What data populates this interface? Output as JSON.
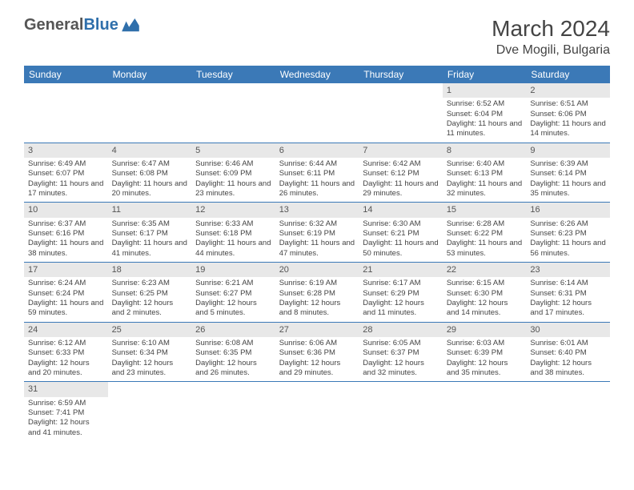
{
  "logo": {
    "general": "General",
    "blue": "Blue"
  },
  "title": "March 2024",
  "location": "Dve Mogili, Bulgaria",
  "colors": {
    "header_bg": "#3b79b7",
    "header_text": "#ffffff",
    "daynum_bg": "#e8e8e8",
    "row_divider": "#3b79b7",
    "body_text": "#444444"
  },
  "weekdays": [
    "Sunday",
    "Monday",
    "Tuesday",
    "Wednesday",
    "Thursday",
    "Friday",
    "Saturday"
  ],
  "weeks": [
    [
      null,
      null,
      null,
      null,
      null,
      {
        "n": "1",
        "sr": "Sunrise: 6:52 AM",
        "ss": "Sunset: 6:04 PM",
        "dl": "Daylight: 11 hours and 11 minutes."
      },
      {
        "n": "2",
        "sr": "Sunrise: 6:51 AM",
        "ss": "Sunset: 6:06 PM",
        "dl": "Daylight: 11 hours and 14 minutes."
      }
    ],
    [
      {
        "n": "3",
        "sr": "Sunrise: 6:49 AM",
        "ss": "Sunset: 6:07 PM",
        "dl": "Daylight: 11 hours and 17 minutes."
      },
      {
        "n": "4",
        "sr": "Sunrise: 6:47 AM",
        "ss": "Sunset: 6:08 PM",
        "dl": "Daylight: 11 hours and 20 minutes."
      },
      {
        "n": "5",
        "sr": "Sunrise: 6:46 AM",
        "ss": "Sunset: 6:09 PM",
        "dl": "Daylight: 11 hours and 23 minutes."
      },
      {
        "n": "6",
        "sr": "Sunrise: 6:44 AM",
        "ss": "Sunset: 6:11 PM",
        "dl": "Daylight: 11 hours and 26 minutes."
      },
      {
        "n": "7",
        "sr": "Sunrise: 6:42 AM",
        "ss": "Sunset: 6:12 PM",
        "dl": "Daylight: 11 hours and 29 minutes."
      },
      {
        "n": "8",
        "sr": "Sunrise: 6:40 AM",
        "ss": "Sunset: 6:13 PM",
        "dl": "Daylight: 11 hours and 32 minutes."
      },
      {
        "n": "9",
        "sr": "Sunrise: 6:39 AM",
        "ss": "Sunset: 6:14 PM",
        "dl": "Daylight: 11 hours and 35 minutes."
      }
    ],
    [
      {
        "n": "10",
        "sr": "Sunrise: 6:37 AM",
        "ss": "Sunset: 6:16 PM",
        "dl": "Daylight: 11 hours and 38 minutes."
      },
      {
        "n": "11",
        "sr": "Sunrise: 6:35 AM",
        "ss": "Sunset: 6:17 PM",
        "dl": "Daylight: 11 hours and 41 minutes."
      },
      {
        "n": "12",
        "sr": "Sunrise: 6:33 AM",
        "ss": "Sunset: 6:18 PM",
        "dl": "Daylight: 11 hours and 44 minutes."
      },
      {
        "n": "13",
        "sr": "Sunrise: 6:32 AM",
        "ss": "Sunset: 6:19 PM",
        "dl": "Daylight: 11 hours and 47 minutes."
      },
      {
        "n": "14",
        "sr": "Sunrise: 6:30 AM",
        "ss": "Sunset: 6:21 PM",
        "dl": "Daylight: 11 hours and 50 minutes."
      },
      {
        "n": "15",
        "sr": "Sunrise: 6:28 AM",
        "ss": "Sunset: 6:22 PM",
        "dl": "Daylight: 11 hours and 53 minutes."
      },
      {
        "n": "16",
        "sr": "Sunrise: 6:26 AM",
        "ss": "Sunset: 6:23 PM",
        "dl": "Daylight: 11 hours and 56 minutes."
      }
    ],
    [
      {
        "n": "17",
        "sr": "Sunrise: 6:24 AM",
        "ss": "Sunset: 6:24 PM",
        "dl": "Daylight: 11 hours and 59 minutes."
      },
      {
        "n": "18",
        "sr": "Sunrise: 6:23 AM",
        "ss": "Sunset: 6:25 PM",
        "dl": "Daylight: 12 hours and 2 minutes."
      },
      {
        "n": "19",
        "sr": "Sunrise: 6:21 AM",
        "ss": "Sunset: 6:27 PM",
        "dl": "Daylight: 12 hours and 5 minutes."
      },
      {
        "n": "20",
        "sr": "Sunrise: 6:19 AM",
        "ss": "Sunset: 6:28 PM",
        "dl": "Daylight: 12 hours and 8 minutes."
      },
      {
        "n": "21",
        "sr": "Sunrise: 6:17 AM",
        "ss": "Sunset: 6:29 PM",
        "dl": "Daylight: 12 hours and 11 minutes."
      },
      {
        "n": "22",
        "sr": "Sunrise: 6:15 AM",
        "ss": "Sunset: 6:30 PM",
        "dl": "Daylight: 12 hours and 14 minutes."
      },
      {
        "n": "23",
        "sr": "Sunrise: 6:14 AM",
        "ss": "Sunset: 6:31 PM",
        "dl": "Daylight: 12 hours and 17 minutes."
      }
    ],
    [
      {
        "n": "24",
        "sr": "Sunrise: 6:12 AM",
        "ss": "Sunset: 6:33 PM",
        "dl": "Daylight: 12 hours and 20 minutes."
      },
      {
        "n": "25",
        "sr": "Sunrise: 6:10 AM",
        "ss": "Sunset: 6:34 PM",
        "dl": "Daylight: 12 hours and 23 minutes."
      },
      {
        "n": "26",
        "sr": "Sunrise: 6:08 AM",
        "ss": "Sunset: 6:35 PM",
        "dl": "Daylight: 12 hours and 26 minutes."
      },
      {
        "n": "27",
        "sr": "Sunrise: 6:06 AM",
        "ss": "Sunset: 6:36 PM",
        "dl": "Daylight: 12 hours and 29 minutes."
      },
      {
        "n": "28",
        "sr": "Sunrise: 6:05 AM",
        "ss": "Sunset: 6:37 PM",
        "dl": "Daylight: 12 hours and 32 minutes."
      },
      {
        "n": "29",
        "sr": "Sunrise: 6:03 AM",
        "ss": "Sunset: 6:39 PM",
        "dl": "Daylight: 12 hours and 35 minutes."
      },
      {
        "n": "30",
        "sr": "Sunrise: 6:01 AM",
        "ss": "Sunset: 6:40 PM",
        "dl": "Daylight: 12 hours and 38 minutes."
      }
    ],
    [
      {
        "n": "31",
        "sr": "Sunrise: 6:59 AM",
        "ss": "Sunset: 7:41 PM",
        "dl": "Daylight: 12 hours and 41 minutes."
      },
      null,
      null,
      null,
      null,
      null,
      null
    ]
  ]
}
